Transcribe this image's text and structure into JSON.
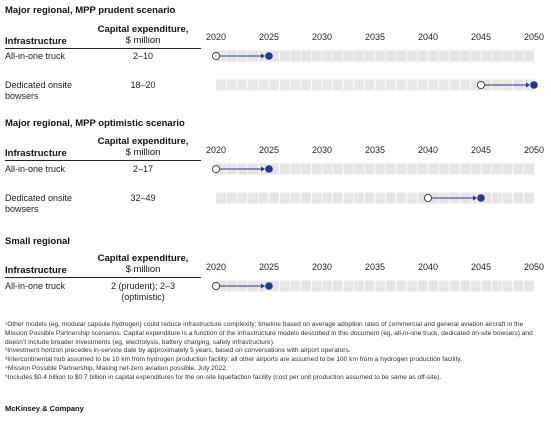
{
  "colors": {
    "track": "#e6e6e6",
    "track_tick": "#ffffff",
    "arrow": "#1f3b8c",
    "start_fill": "#ffffff",
    "end_fill": "#1f3b8c"
  },
  "headers": {
    "infrastructure": "Infrastructure",
    "capex_title": "Capital expenditure,",
    "capex_unit": "$ million"
  },
  "chart_data": [
    {
      "type": "timeline",
      "title": "Major regional, MPP prudent scenario",
      "x_ticks": [
        2020,
        2025,
        2030,
        2035,
        2040,
        2045,
        2050
      ],
      "xlim": [
        2020,
        2050
      ],
      "rows": [
        {
          "label": "All-in-one truck",
          "capex": "2–10",
          "start": 2020,
          "end": 2025
        },
        {
          "label": "Dedicated onsite bowsers",
          "capex": "18–20",
          "start": 2045,
          "end": 2050
        }
      ]
    },
    {
      "type": "timeline",
      "title": "Major regional, MPP optimistic scenario",
      "x_ticks": [
        2020,
        2025,
        2030,
        2035,
        2040,
        2045,
        2050
      ],
      "xlim": [
        2020,
        2050
      ],
      "rows": [
        {
          "label": "All-in-one truck",
          "capex": "2–17",
          "start": 2020,
          "end": 2025
        },
        {
          "label": "Dedicated onsite bowsers",
          "capex": "32–49",
          "start": 2040,
          "end": 2045
        }
      ]
    },
    {
      "type": "timeline",
      "title": "Small regional",
      "x_ticks": [
        2020,
        2025,
        2030,
        2035,
        2040,
        2045,
        2050
      ],
      "xlim": [
        2020,
        2050
      ],
      "rows": [
        {
          "label": "All-in-one truck",
          "capex": "2 (prudent); 2–3 (optimistic)",
          "start": 2020,
          "end": 2025
        }
      ]
    }
  ],
  "footnotes": [
    "¹Other models (eg, modular capsule hydrogen) could reduce infrastructure complexity; timeline based on average adoption rates of commercial and general aviation aircraft in the Mission Possible Partnership scenarios. Capital expenditure is a function of the infrastructure models described in this document (eg, all-in-one truck, dedicated on-site bowsers) and doesn’t include broader investments (eg, electrolysis, battery charging, safety infrastructure).",
    "²Investment horizon precedes in-service date by approximately 5 years, based on conversations with airport operators.",
    "³Intercontinental hub assumed to be 10 km from hydrogen production facility; all other airports are assumed to be 100 km from a hydrogen production facility.",
    "⁴Mission Possible Partnership, Making net-zero aviation possible, July 2022.",
    "⁵Includes $0.4 billion to $0.7 billion in capital expenditures for the on-site liquefaction facility (cost per unit production assumed to be same as off-site)."
  ],
  "brand": "McKinsey & Company"
}
